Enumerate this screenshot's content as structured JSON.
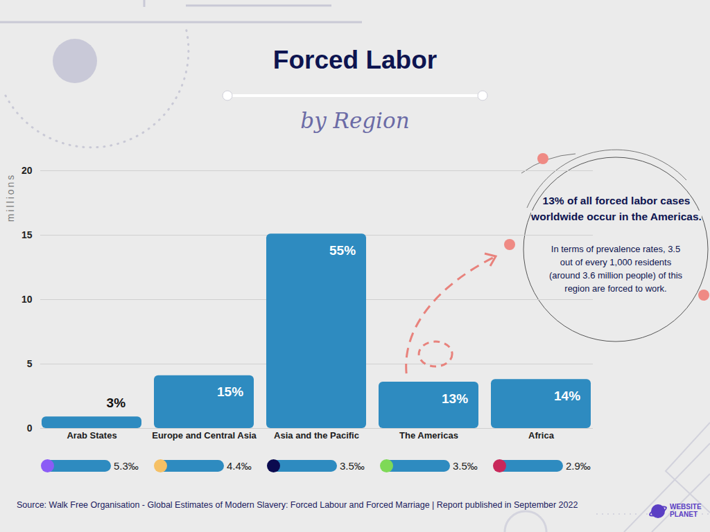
{
  "chart_data": {
    "type": "bar",
    "title": "Forced Labor",
    "subtitle": "by Region",
    "y_label": "millions",
    "categories": [
      "Arab States",
      "Europe and Central Asia",
      "Asia and the Pacific",
      "The Americas",
      "Africa"
    ],
    "values": [
      0.9,
      4.1,
      15.1,
      3.6,
      3.8
    ],
    "color": "#2e8bc0",
    "ylim": [
      0,
      20
    ],
    "yticks": [
      0,
      5,
      10,
      15,
      20
    ],
    "grid": true,
    "bar_labels": [
      "3%",
      "15%",
      "55%",
      "13%",
      "14%"
    ],
    "prevalence_labels": [
      "5.3‰",
      "4.4‰",
      "3.5‰",
      "3.5‰",
      "2.9‰"
    ],
    "prevalence_colors": [
      "#8b5cf6",
      "#f5c065",
      "#0b0b4f",
      "#7ed957",
      "#c8285a"
    ],
    "annotation": {
      "category": "The Americas",
      "title": "13% of all forced labor cases worldwide occur in the Americas.",
      "text": "In terms of prevalence rates, 3.5 out of every 1,000 residents (around 3.6 million people) of this region are forced to work."
    },
    "source": "Source: Walk Free Organisation - Global Estimates of Modern Slavery: Forced Labour and Forced Marriage | Report published in September 2022",
    "logo": "WEBSITE PLANET"
  }
}
